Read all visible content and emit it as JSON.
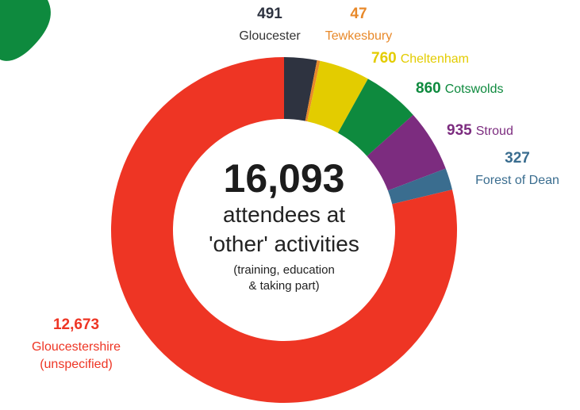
{
  "chart_data": {
    "type": "donut",
    "categories": [
      "Gloucester",
      "Tewkesbury",
      "Cheltenham",
      "Cotswolds",
      "Stroud",
      "Forest of Dean",
      "Gloucestershire (unspecified)"
    ],
    "values": [
      491,
      47,
      760,
      860,
      935,
      327,
      12673
    ],
    "value_labels": [
      "491",
      "47",
      "760",
      "860",
      "935",
      "327",
      "12,673"
    ],
    "colors": [
      "#2e3340",
      "#e8892a",
      "#e3cc00",
      "#0e8a3e",
      "#7c2c7f",
      "#3a6d8f",
      "#ee3524"
    ],
    "annotations": [
      "16,093",
      "attendees at",
      "'other' activities",
      "(training, education",
      "& taking part)"
    ]
  }
}
